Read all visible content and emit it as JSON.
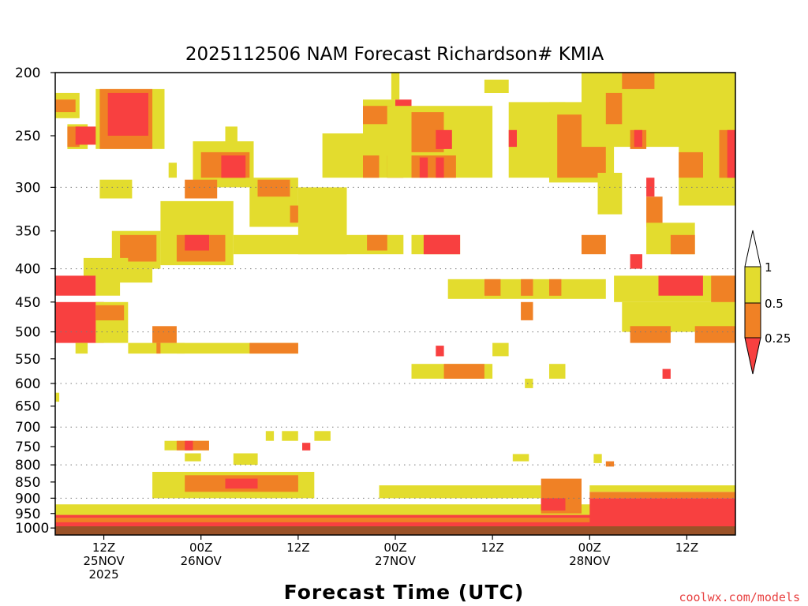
{
  "chart_data": {
    "type": "heatmap",
    "title": "2025112506 NAM Forecast Richardson# KMIA",
    "xlabel": "Forecast Time (UTC)",
    "ylabel": "",
    "credit": "coolwx.com/models",
    "x_ticks": [
      {
        "hour": 6,
        "lines": [
          "12Z",
          "25NOV",
          "2025"
        ]
      },
      {
        "hour": 18,
        "lines": [
          "00Z",
          "26NOV"
        ]
      },
      {
        "hour": 30,
        "lines": [
          "12Z"
        ]
      },
      {
        "hour": 42,
        "lines": [
          "00Z",
          "27NOV"
        ]
      },
      {
        "hour": 54,
        "lines": [
          "12Z"
        ]
      },
      {
        "hour": 66,
        "lines": [
          "00Z",
          "28NOV"
        ]
      },
      {
        "hour": 78,
        "lines": [
          "12Z"
        ]
      }
    ],
    "xlim_hours": [
      0,
      84
    ],
    "y_ticks": [
      "200",
      "250",
      "300",
      "350",
      "400",
      "450",
      "500",
      "550",
      "600",
      "650",
      "700",
      "750",
      "800",
      "850",
      "900",
      "950",
      "1000"
    ],
    "ylim_hPa": [
      1025,
      200
    ],
    "gridlines_hPa": [
      300,
      400,
      500,
      600,
      700,
      800,
      900,
      1000
    ],
    "legend": {
      "labels": [
        "1",
        "0.5",
        "0.25"
      ],
      "bins": [
        {
          "range": "0.5-1",
          "color": "#e3dc2e"
        },
        {
          "range": "0.25-0.5",
          "color": "#f08125"
        },
        {
          "range": "<0.25",
          "color": "#f84040"
        }
      ],
      "position": "right"
    },
    "colors": {
      "ri_lt_0_25": "#f84040",
      "ri_0_25_0_5": "#f08125",
      "ri_0_5_1": "#e3dc2e",
      "ground": "#9a5228"
    },
    "regions": [
      {
        "c": "y",
        "h0": 0,
        "h1": 3,
        "p0": 215,
        "p1": 235
      },
      {
        "c": "o",
        "h0": 0,
        "h1": 2.5,
        "p0": 220,
        "p1": 230
      },
      {
        "c": "y",
        "h0": 1.5,
        "h1": 4,
        "p0": 240,
        "p1": 262
      },
      {
        "c": "o",
        "h0": 1.5,
        "h1": 3,
        "p0": 242,
        "p1": 260
      },
      {
        "c": "r",
        "h0": 2.5,
        "h1": 5.5,
        "p0": 242,
        "p1": 258
      },
      {
        "c": "y",
        "h0": 5,
        "h1": 13.5,
        "p0": 212,
        "p1": 262
      },
      {
        "c": "o",
        "h0": 5.5,
        "h1": 12,
        "p0": 212,
        "p1": 262
      },
      {
        "c": "r",
        "h0": 6.5,
        "h1": 11.5,
        "p0": 215,
        "p1": 250
      },
      {
        "c": "y",
        "h0": 14,
        "h1": 15,
        "p0": 275,
        "p1": 290
      },
      {
        "c": "y",
        "h0": 17,
        "h1": 24.5,
        "p0": 255,
        "p1": 300
      },
      {
        "c": "o",
        "h0": 18,
        "h1": 24,
        "p0": 265,
        "p1": 290
      },
      {
        "c": "r",
        "h0": 20.5,
        "h1": 23.5,
        "p0": 268,
        "p1": 290
      },
      {
        "c": "y",
        "h0": 21,
        "h1": 22.5,
        "p0": 242,
        "p1": 260
      },
      {
        "c": "o",
        "h0": 16,
        "h1": 20,
        "p0": 292,
        "p1": 312
      },
      {
        "c": "y",
        "h0": 5.5,
        "h1": 9.5,
        "p0": 292,
        "p1": 312
      },
      {
        "c": "y",
        "h0": 13,
        "h1": 22,
        "p0": 315,
        "p1": 395
      },
      {
        "c": "o",
        "h0": 15,
        "h1": 21,
        "p0": 355,
        "p1": 390
      },
      {
        "c": "r",
        "h0": 16,
        "h1": 19,
        "p0": 355,
        "p1": 375
      },
      {
        "c": "y",
        "h0": 7,
        "h1": 13,
        "p0": 350,
        "p1": 400
      },
      {
        "c": "o",
        "h0": 8,
        "h1": 12.5,
        "p0": 355,
        "p1": 390
      },
      {
        "c": "y",
        "h0": 3.5,
        "h1": 9,
        "p0": 385,
        "p1": 410
      },
      {
        "c": "y",
        "h0": 6.5,
        "h1": 12,
        "p0": 400,
        "p1": 420
      },
      {
        "c": "y",
        "h0": 24,
        "h1": 30,
        "p0": 290,
        "p1": 345
      },
      {
        "c": "o",
        "h0": 25,
        "h1": 29,
        "p0": 292,
        "p1": 310
      },
      {
        "c": "o",
        "h0": 29,
        "h1": 33,
        "p0": 320,
        "p1": 340
      },
      {
        "c": "y",
        "h0": 30,
        "h1": 36,
        "p0": 300,
        "p1": 380
      },
      {
        "c": "y",
        "h0": 22,
        "h1": 43,
        "p0": 355,
        "p1": 380
      },
      {
        "c": "o",
        "h0": 38.5,
        "h1": 41,
        "p0": 355,
        "p1": 375
      },
      {
        "c": "y",
        "h0": 44,
        "h1": 50,
        "p0": 355,
        "p1": 380
      },
      {
        "c": "r",
        "h0": 45.5,
        "h1": 50,
        "p0": 355,
        "p1": 380
      },
      {
        "c": "y",
        "h0": 33,
        "h1": 44,
        "p0": 248,
        "p1": 290
      },
      {
        "c": "y",
        "h0": 38,
        "h1": 42,
        "p0": 220,
        "p1": 250
      },
      {
        "c": "o",
        "h0": 38,
        "h1": 41.5,
        "p0": 225,
        "p1": 240
      },
      {
        "c": "r",
        "h0": 42,
        "h1": 44,
        "p0": 220,
        "p1": 240
      },
      {
        "c": "o",
        "h0": 38,
        "h1": 40,
        "p0": 268,
        "p1": 290
      },
      {
        "c": "o",
        "h0": 41,
        "h1": 43,
        "p0": 268,
        "p1": 290
      },
      {
        "c": "y",
        "h0": 41,
        "h1": 54,
        "p0": 225,
        "p1": 290
      },
      {
        "c": "o",
        "h0": 44,
        "h1": 48,
        "p0": 230,
        "p1": 265
      },
      {
        "c": "r",
        "h0": 47,
        "h1": 49,
        "p0": 245,
        "p1": 262
      },
      {
        "c": "o",
        "h0": 44,
        "h1": 49.5,
        "p0": 268,
        "p1": 290
      },
      {
        "c": "r",
        "h0": 45,
        "h1": 46,
        "p0": 270,
        "p1": 290
      },
      {
        "c": "r",
        "h0": 47,
        "h1": 48,
        "p0": 270,
        "p1": 290
      },
      {
        "c": "y",
        "h0": 41.5,
        "h1": 42.5,
        "p0": 200,
        "p1": 220
      },
      {
        "c": "y",
        "h0": 53,
        "h1": 56,
        "p0": 205,
        "p1": 215
      },
      {
        "c": "y",
        "h0": 56,
        "h1": 63,
        "p0": 222,
        "p1": 290
      },
      {
        "c": "r",
        "h0": 56,
        "h1": 57,
        "p0": 245,
        "p1": 260
      },
      {
        "c": "y",
        "h0": 61,
        "h1": 69,
        "p0": 222,
        "p1": 295
      },
      {
        "c": "o",
        "h0": 62,
        "h1": 68,
        "p0": 232,
        "p1": 290
      },
      {
        "c": "y",
        "h0": 65,
        "h1": 84,
        "p0": 200,
        "p1": 260
      },
      {
        "c": "o",
        "h0": 70,
        "h1": 75,
        "p0": 200,
        "p1": 212
      },
      {
        "c": "o",
        "h0": 68,
        "h1": 70,
        "p0": 215,
        "p1": 240
      },
      {
        "c": "o",
        "h0": 71,
        "h1": 73,
        "p0": 245,
        "p1": 262
      },
      {
        "c": "r",
        "h0": 71.5,
        "h1": 72.5,
        "p0": 245,
        "p1": 260
      },
      {
        "c": "y",
        "h0": 77,
        "h1": 84,
        "p0": 225,
        "p1": 320
      },
      {
        "c": "o",
        "h0": 77,
        "h1": 80,
        "p0": 265,
        "p1": 290
      },
      {
        "c": "o",
        "h0": 82,
        "h1": 84,
        "p0": 245,
        "p1": 290
      },
      {
        "c": "r",
        "h0": 83,
        "h1": 84,
        "p0": 245,
        "p1": 290
      },
      {
        "c": "y",
        "h0": 74,
        "h1": 76,
        "p0": 200,
        "p1": 235
      },
      {
        "c": "y",
        "h0": 67,
        "h1": 70,
        "p0": 285,
        "p1": 330
      },
      {
        "c": "o",
        "h0": 73,
        "h1": 75,
        "p0": 310,
        "p1": 345
      },
      {
        "c": "r",
        "h0": 73,
        "h1": 74,
        "p0": 290,
        "p1": 310
      },
      {
        "c": "y",
        "h0": 73,
        "h1": 79,
        "p0": 340,
        "p1": 380
      },
      {
        "c": "o",
        "h0": 76,
        "h1": 79,
        "p0": 355,
        "p1": 380
      },
      {
        "c": "o",
        "h0": 65,
        "h1": 68,
        "p0": 355,
        "p1": 380
      },
      {
        "c": "r",
        "h0": 71,
        "h1": 72.5,
        "p0": 380,
        "p1": 400
      },
      {
        "c": "y",
        "h0": 48.5,
        "h1": 53,
        "p0": 415,
        "p1": 445
      },
      {
        "c": "y",
        "h0": 53,
        "h1": 68,
        "p0": 415,
        "p1": 445
      },
      {
        "c": "o",
        "h0": 53,
        "h1": 55,
        "p0": 415,
        "p1": 440
      },
      {
        "c": "o",
        "h0": 57.5,
        "h1": 59,
        "p0": 415,
        "p1": 440
      },
      {
        "c": "o",
        "h0": 61,
        "h1": 62.5,
        "p0": 415,
        "p1": 440
      },
      {
        "c": "o",
        "h0": 57.5,
        "h1": 59,
        "p0": 450,
        "p1": 480
      },
      {
        "c": "y",
        "h0": 69,
        "h1": 84,
        "p0": 410,
        "p1": 450
      },
      {
        "c": "r",
        "h0": 74.5,
        "h1": 80,
        "p0": 410,
        "p1": 440
      },
      {
        "c": "o",
        "h0": 81,
        "h1": 84,
        "p0": 410,
        "p1": 500
      },
      {
        "c": "y",
        "h0": 70,
        "h1": 84,
        "p0": 450,
        "p1": 500
      },
      {
        "c": "o",
        "h0": 71,
        "h1": 76,
        "p0": 490,
        "p1": 520
      },
      {
        "c": "o",
        "h0": 79,
        "h1": 84,
        "p0": 490,
        "p1": 520
      },
      {
        "c": "r",
        "h0": 75,
        "h1": 76,
        "p0": 570,
        "p1": 590
      },
      {
        "c": "r",
        "h0": 0,
        "h1": 5,
        "p0": 410,
        "p1": 440
      },
      {
        "c": "y",
        "h0": 5,
        "h1": 8,
        "p0": 410,
        "p1": 440
      },
      {
        "c": "r",
        "h0": 0,
        "h1": 6,
        "p0": 450,
        "p1": 520
      },
      {
        "c": "y",
        "h0": 5,
        "h1": 9,
        "p0": 450,
        "p1": 520
      },
      {
        "c": "o",
        "h0": 5,
        "h1": 8.5,
        "p0": 455,
        "p1": 480
      },
      {
        "c": "y",
        "h0": 2.5,
        "h1": 4,
        "p0": 520,
        "p1": 540
      },
      {
        "c": "y",
        "h0": 9,
        "h1": 16,
        "p0": 520,
        "p1": 540
      },
      {
        "c": "o",
        "h0": 12.5,
        "h1": 13,
        "p0": 520,
        "p1": 540
      },
      {
        "c": "o",
        "h0": 12,
        "h1": 15,
        "p0": 490,
        "p1": 520
      },
      {
        "c": "y",
        "h0": 15,
        "h1": 30,
        "p0": 520,
        "p1": 540
      },
      {
        "c": "o",
        "h0": 24,
        "h1": 30,
        "p0": 520,
        "p1": 540
      },
      {
        "c": "y",
        "h0": 44,
        "h1": 54,
        "p0": 560,
        "p1": 590
      },
      {
        "c": "o",
        "h0": 48,
        "h1": 53,
        "p0": 560,
        "p1": 590
      },
      {
        "c": "r",
        "h0": 47,
        "h1": 48,
        "p0": 525,
        "p1": 545
      },
      {
        "c": "y",
        "h0": 54,
        "h1": 56,
        "p0": 520,
        "p1": 545
      },
      {
        "c": "y",
        "h0": 61,
        "h1": 63,
        "p0": 560,
        "p1": 590
      },
      {
        "c": "y",
        "h0": 58,
        "h1": 59,
        "p0": 590,
        "p1": 610
      },
      {
        "c": "y",
        "h0": 0,
        "h1": 0.5,
        "p0": 620,
        "p1": 640
      },
      {
        "c": "y",
        "h0": 13.5,
        "h1": 19,
        "p0": 735,
        "p1": 760
      },
      {
        "c": "o",
        "h0": 15,
        "h1": 19,
        "p0": 735,
        "p1": 760
      },
      {
        "c": "r",
        "h0": 16,
        "h1": 17,
        "p0": 735,
        "p1": 760
      },
      {
        "c": "y",
        "h0": 16,
        "h1": 18,
        "p0": 768,
        "p1": 790
      },
      {
        "c": "y",
        "h0": 22,
        "h1": 25,
        "p0": 768,
        "p1": 800
      },
      {
        "c": "y",
        "h0": 26,
        "h1": 27,
        "p0": 710,
        "p1": 735
      },
      {
        "c": "y",
        "h0": 28,
        "h1": 30,
        "p0": 710,
        "p1": 735
      },
      {
        "c": "y",
        "h0": 32,
        "h1": 34,
        "p0": 710,
        "p1": 735
      },
      {
        "c": "r",
        "h0": 30.5,
        "h1": 31.5,
        "p0": 740,
        "p1": 760
      },
      {
        "c": "y",
        "h0": 56.5,
        "h1": 58.5,
        "p0": 770,
        "p1": 790
      },
      {
        "c": "y",
        "h0": 66.5,
        "h1": 67.5,
        "p0": 770,
        "p1": 795
      },
      {
        "c": "o",
        "h0": 68,
        "h1": 69,
        "p0": 790,
        "p1": 805
      }
    ],
    "bl_regions": [
      {
        "c": "y",
        "h0": 0,
        "h1": 84,
        "p0": 920,
        "p1": 1003
      },
      {
        "c": "r",
        "h0": 0,
        "h1": 84,
        "p0": 978,
        "p1": 1002
      },
      {
        "c": "o",
        "h0": 0,
        "h1": 84,
        "p0": 965,
        "p1": 980
      },
      {
        "c": "r",
        "h0": 0,
        "h1": 84,
        "p0": 955,
        "p1": 965
      },
      {
        "c": "r",
        "h0": 66,
        "h1": 84,
        "p0": 900,
        "p1": 1002
      },
      {
        "c": "o",
        "h0": 66,
        "h1": 84,
        "p0": 880,
        "p1": 900
      },
      {
        "c": "y",
        "h0": 66,
        "h1": 84,
        "p0": 860,
        "p1": 880
      },
      {
        "c": "y",
        "h0": 12,
        "h1": 32,
        "p0": 820,
        "p1": 900
      },
      {
        "c": "o",
        "h0": 16,
        "h1": 30,
        "p0": 830,
        "p1": 880
      },
      {
        "c": "r",
        "h0": 21,
        "h1": 25,
        "p0": 840,
        "p1": 870
      },
      {
        "c": "y",
        "h0": 40,
        "h1": 60,
        "p0": 860,
        "p1": 900
      },
      {
        "c": "o",
        "h0": 60,
        "h1": 65,
        "p0": 840,
        "p1": 950
      },
      {
        "c": "r",
        "h0": 60,
        "h1": 63,
        "p0": 900,
        "p1": 940
      }
    ]
  }
}
